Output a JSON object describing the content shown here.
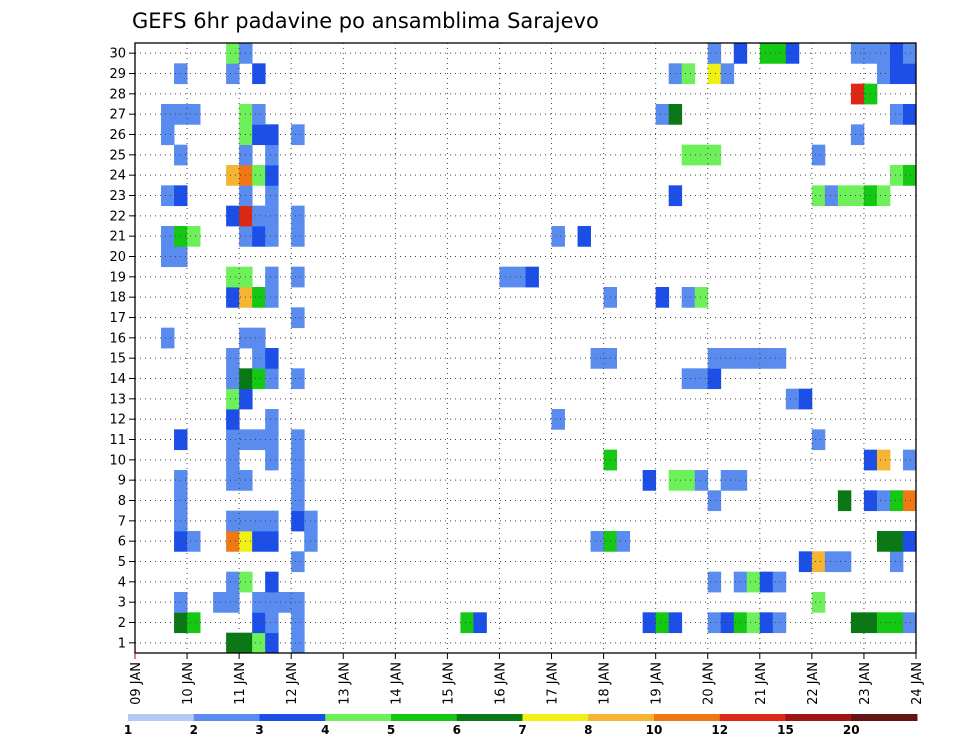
{
  "chart_data": {
    "type": "heatmap",
    "title": "GEFS 6hr padavine po ansamblima Sarajevo",
    "xlabel": "",
    "ylabel": "",
    "x_tick_labels": [
      "09 JAN",
      "10 JAN",
      "11 JAN",
      "12 JAN",
      "13 JAN",
      "14 JAN",
      "15 JAN",
      "16 JAN",
      "17 JAN",
      "18 JAN",
      "19 JAN",
      "20 JAN",
      "21 JAN",
      "22 JAN",
      "23 JAN",
      "24 JAN"
    ],
    "xlim_days": [
      9,
      24
    ],
    "y_tick_labels": [
      "1",
      "2",
      "3",
      "4",
      "5",
      "6",
      "7",
      "8",
      "9",
      "10",
      "11",
      "12",
      "13",
      "14",
      "15",
      "16",
      "17",
      "18",
      "19",
      "20",
      "21",
      "22",
      "23",
      "24",
      "25",
      "26",
      "27",
      "28",
      "29",
      "30"
    ],
    "ylim_members": [
      0,
      30
    ],
    "grid": true,
    "step_hours": 6,
    "colorbar": {
      "labels": [
        "1",
        "2",
        "3",
        "4",
        "5",
        "6",
        "7",
        "8",
        "10",
        "12",
        "15",
        "20"
      ],
      "colors": [
        "#b4c8f6",
        "#5a8cf0",
        "#1c4fe8",
        "#6ef05a",
        "#14c814",
        "#0a7814",
        "#f0f014",
        "#f5b432",
        "#f07814",
        "#dc2814",
        "#a01414",
        "#641414"
      ]
    },
    "cells": [
      [
        10.75,
        0,
        5
      ],
      [
        11.0,
        0,
        5
      ],
      [
        11.25,
        0,
        3
      ],
      [
        11.5,
        0,
        2
      ],
      [
        12.0,
        0,
        1
      ],
      [
        9.75,
        1,
        5
      ],
      [
        10.0,
        1,
        4
      ],
      [
        11.25,
        1,
        2
      ],
      [
        11.5,
        1,
        1
      ],
      [
        12.0,
        1,
        1
      ],
      [
        15.25,
        1,
        4
      ],
      [
        15.5,
        1,
        2
      ],
      [
        18.75,
        1,
        2
      ],
      [
        19.0,
        1,
        4
      ],
      [
        19.25,
        1,
        2
      ],
      [
        20.0,
        1,
        1
      ],
      [
        20.25,
        1,
        2
      ],
      [
        20.5,
        1,
        4
      ],
      [
        20.75,
        1,
        3
      ],
      [
        21.0,
        1,
        2
      ],
      [
        21.25,
        1,
        1
      ],
      [
        22.75,
        1,
        5
      ],
      [
        23.0,
        1,
        5
      ],
      [
        23.25,
        1,
        4
      ],
      [
        23.5,
        1,
        4
      ],
      [
        23.75,
        1,
        1
      ],
      [
        9.75,
        2,
        1
      ],
      [
        10.5,
        2,
        1
      ],
      [
        10.75,
        2,
        1
      ],
      [
        11.25,
        2,
        1
      ],
      [
        11.5,
        2,
        1
      ],
      [
        11.75,
        2,
        1
      ],
      [
        12.0,
        2,
        1
      ],
      [
        22.0,
        2,
        3
      ],
      [
        10.75,
        3,
        1
      ],
      [
        11.0,
        3,
        3
      ],
      [
        11.5,
        3,
        2
      ],
      [
        20.0,
        3,
        1
      ],
      [
        20.5,
        3,
        1
      ],
      [
        20.75,
        3,
        3
      ],
      [
        21.0,
        3,
        2
      ],
      [
        21.25,
        3,
        1
      ],
      [
        12.0,
        4,
        1
      ],
      [
        21.75,
        4,
        2
      ],
      [
        22.0,
        4,
        7
      ],
      [
        22.25,
        4,
        1
      ],
      [
        22.5,
        4,
        1
      ],
      [
        23.5,
        4,
        1
      ],
      [
        9.75,
        5,
        2
      ],
      [
        10.0,
        5,
        1
      ],
      [
        10.75,
        5,
        8
      ],
      [
        11.0,
        5,
        6
      ],
      [
        11.25,
        5,
        2
      ],
      [
        11.5,
        5,
        2
      ],
      [
        12.25,
        5,
        1
      ],
      [
        17.75,
        5,
        1
      ],
      [
        18.0,
        5,
        4
      ],
      [
        18.25,
        5,
        1
      ],
      [
        23.25,
        5,
        5
      ],
      [
        23.5,
        5,
        5
      ],
      [
        23.75,
        5,
        2
      ],
      [
        9.75,
        6,
        1
      ],
      [
        10.75,
        6,
        1
      ],
      [
        11.0,
        6,
        1
      ],
      [
        11.25,
        6,
        1
      ],
      [
        11.5,
        6,
        1
      ],
      [
        12.0,
        6,
        2
      ],
      [
        12.25,
        6,
        1
      ],
      [
        9.75,
        7,
        1
      ],
      [
        12.0,
        7,
        1
      ],
      [
        20.0,
        7,
        1
      ],
      [
        22.5,
        7,
        5
      ],
      [
        23.0,
        7,
        2
      ],
      [
        23.25,
        7,
        1
      ],
      [
        23.5,
        7,
        4
      ],
      [
        23.75,
        7,
        8
      ],
      [
        9.75,
        8,
        1
      ],
      [
        10.75,
        8,
        1
      ],
      [
        11.0,
        8,
        1
      ],
      [
        12.0,
        8,
        1
      ],
      [
        18.75,
        8,
        2
      ],
      [
        19.25,
        8,
        3
      ],
      [
        19.5,
        8,
        3
      ],
      [
        19.75,
        8,
        1
      ],
      [
        20.25,
        8,
        1
      ],
      [
        20.5,
        8,
        1
      ],
      [
        10.75,
        9,
        1
      ],
      [
        11.5,
        9,
        1
      ],
      [
        12.0,
        9,
        1
      ],
      [
        18.0,
        9,
        4
      ],
      [
        23.0,
        9,
        2
      ],
      [
        23.25,
        9,
        7
      ],
      [
        23.75,
        9,
        1
      ],
      [
        9.75,
        10,
        2
      ],
      [
        10.75,
        10,
        1
      ],
      [
        11.0,
        10,
        1
      ],
      [
        11.25,
        10,
        1
      ],
      [
        11.5,
        10,
        1
      ],
      [
        12.0,
        10,
        1
      ],
      [
        22.0,
        10,
        1
      ],
      [
        10.75,
        11,
        2
      ],
      [
        11.5,
        11,
        1
      ],
      [
        17.0,
        11,
        1
      ],
      [
        10.75,
        12,
        3
      ],
      [
        11.0,
        12,
        2
      ],
      [
        21.5,
        12,
        1
      ],
      [
        21.75,
        12,
        2
      ],
      [
        10.75,
        13,
        1
      ],
      [
        11.0,
        13,
        5
      ],
      [
        11.25,
        13,
        4
      ],
      [
        11.5,
        13,
        1
      ],
      [
        12.0,
        13,
        1
      ],
      [
        19.5,
        13,
        1
      ],
      [
        19.75,
        13,
        1
      ],
      [
        20.0,
        13,
        2
      ],
      [
        10.75,
        14,
        1
      ],
      [
        11.25,
        14,
        1
      ],
      [
        11.5,
        14,
        2
      ],
      [
        17.75,
        14,
        1
      ],
      [
        18.0,
        14,
        1
      ],
      [
        20.0,
        14,
        1
      ],
      [
        20.25,
        14,
        1
      ],
      [
        20.5,
        14,
        1
      ],
      [
        20.75,
        14,
        1
      ],
      [
        21.0,
        14,
        1
      ],
      [
        21.25,
        14,
        1
      ],
      [
        9.5,
        15,
        1
      ],
      [
        11.0,
        15,
        1
      ],
      [
        11.25,
        15,
        1
      ],
      [
        12.0,
        16,
        1
      ],
      [
        10.75,
        17,
        2
      ],
      [
        11.0,
        17,
        7
      ],
      [
        11.25,
        17,
        4
      ],
      [
        11.5,
        17,
        1
      ],
      [
        18.0,
        17,
        1
      ],
      [
        19.0,
        17,
        2
      ],
      [
        19.5,
        17,
        1
      ],
      [
        19.75,
        17,
        3
      ],
      [
        10.75,
        18,
        3
      ],
      [
        11.0,
        18,
        3
      ],
      [
        11.5,
        18,
        1
      ],
      [
        12.0,
        18,
        1
      ],
      [
        16.0,
        18,
        1
      ],
      [
        16.25,
        18,
        1
      ],
      [
        16.5,
        18,
        2
      ],
      [
        9.5,
        19,
        1
      ],
      [
        9.75,
        19,
        1
      ],
      [
        9.5,
        20,
        1
      ],
      [
        9.75,
        20,
        4
      ],
      [
        10.0,
        20,
        3
      ],
      [
        11.0,
        20,
        1
      ],
      [
        11.25,
        20,
        2
      ],
      [
        11.5,
        20,
        1
      ],
      [
        12.0,
        20,
        1
      ],
      [
        17.0,
        20,
        1
      ],
      [
        17.5,
        20,
        2
      ],
      [
        10.75,
        21,
        2
      ],
      [
        11.0,
        21,
        9
      ],
      [
        11.25,
        21,
        1
      ],
      [
        11.5,
        21,
        1
      ],
      [
        12.0,
        21,
        1
      ],
      [
        9.5,
        22,
        1
      ],
      [
        9.75,
        22,
        2
      ],
      [
        11.0,
        22,
        1
      ],
      [
        11.5,
        22,
        1
      ],
      [
        19.25,
        22,
        2
      ],
      [
        22.0,
        22,
        3
      ],
      [
        22.25,
        22,
        1
      ],
      [
        22.5,
        22,
        3
      ],
      [
        22.75,
        22,
        3
      ],
      [
        23.0,
        22,
        4
      ],
      [
        23.25,
        22,
        3
      ],
      [
        10.75,
        23,
        7
      ],
      [
        11.0,
        23,
        8
      ],
      [
        11.25,
        23,
        3
      ],
      [
        11.5,
        23,
        2
      ],
      [
        23.5,
        23,
        3
      ],
      [
        23.75,
        23,
        4
      ],
      [
        9.75,
        24,
        1
      ],
      [
        11.0,
        24,
        1
      ],
      [
        11.5,
        24,
        1
      ],
      [
        19.5,
        24,
        3
      ],
      [
        19.75,
        24,
        3
      ],
      [
        20.0,
        24,
        3
      ],
      [
        22.0,
        24,
        1
      ],
      [
        9.5,
        25,
        1
      ],
      [
        11.0,
        25,
        3
      ],
      [
        11.25,
        25,
        2
      ],
      [
        11.5,
        25,
        2
      ],
      [
        12.0,
        25,
        1
      ],
      [
        22.75,
        25,
        1
      ],
      [
        9.5,
        26,
        1
      ],
      [
        9.75,
        26,
        1
      ],
      [
        10.0,
        26,
        1
      ],
      [
        11.0,
        26,
        3
      ],
      [
        11.25,
        26,
        1
      ],
      [
        19.0,
        26,
        1
      ],
      [
        19.25,
        26,
        5
      ],
      [
        23.5,
        26,
        1
      ],
      [
        23.75,
        26,
        2
      ],
      [
        22.75,
        27,
        9
      ],
      [
        23.0,
        27,
        4
      ],
      [
        9.75,
        28,
        1
      ],
      [
        10.75,
        28,
        1
      ],
      [
        11.25,
        28,
        2
      ],
      [
        19.25,
        28,
        1
      ],
      [
        19.5,
        28,
        3
      ],
      [
        20.0,
        28,
        6
      ],
      [
        20.25,
        28,
        1
      ],
      [
        23.25,
        28,
        1
      ],
      [
        23.5,
        28,
        2
      ],
      [
        23.75,
        28,
        2
      ],
      [
        10.75,
        29,
        3
      ],
      [
        11.0,
        29,
        1
      ],
      [
        20.0,
        29,
        1
      ],
      [
        20.5,
        29,
        2
      ],
      [
        21.0,
        29,
        4
      ],
      [
        21.25,
        29,
        4
      ],
      [
        21.5,
        29,
        2
      ],
      [
        22.75,
        29,
        1
      ],
      [
        23.0,
        29,
        1
      ],
      [
        23.25,
        29,
        1
      ],
      [
        23.5,
        29,
        2
      ],
      [
        23.75,
        29,
        1
      ]
    ]
  }
}
